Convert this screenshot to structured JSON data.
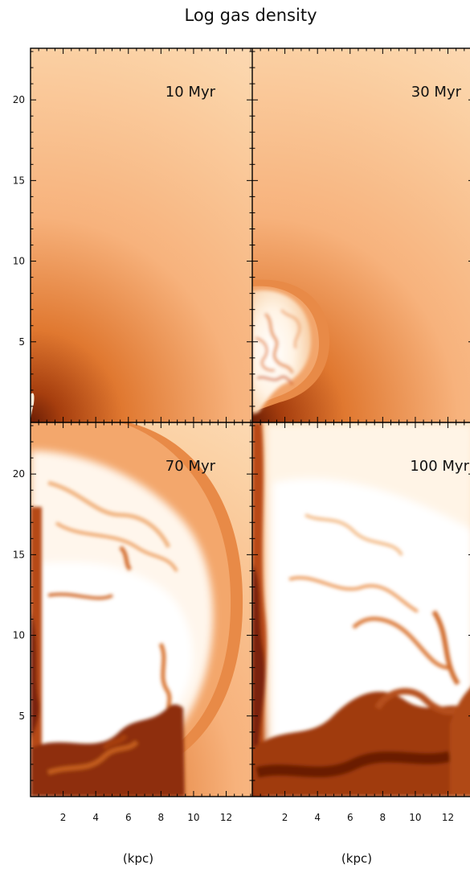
{
  "chart_data": {
    "type": "heatmap",
    "title": "Log gas density",
    "xlabel": "(kpc)",
    "ylabel": "",
    "xlim": [
      0,
      13.6
    ],
    "ylim": [
      0,
      23.2
    ],
    "x_ticks": [
      2,
      4,
      6,
      8,
      10,
      12
    ],
    "y_ticks": [
      5,
      10,
      15,
      20
    ],
    "layout": "2x2 grid",
    "colormap": [
      "#ffffff",
      "#fde3c6",
      "#f7b27c",
      "#e07830",
      "#b24611",
      "#6a1d05"
    ],
    "panels": [
      {
        "label": "10 Myr",
        "row": 0,
        "col": 0,
        "shell_radius_kpc": 0.5,
        "shell_center": [
          0,
          0.5
        ]
      },
      {
        "label": "30 Myr",
        "row": 0,
        "col": 1,
        "shell_radius_kpc": 4.3,
        "shell_center": [
          0,
          4.0
        ]
      },
      {
        "label": "70 Myr",
        "row": 1,
        "col": 0,
        "shell_radius_kpc": 14.2,
        "shell_center": [
          0,
          0.5
        ]
      },
      {
        "label": "100 Myr",
        "row": 1,
        "col": 1,
        "shell_radius_kpc": 26.0,
        "shell_center": [
          0,
          0.5
        ]
      }
    ]
  }
}
